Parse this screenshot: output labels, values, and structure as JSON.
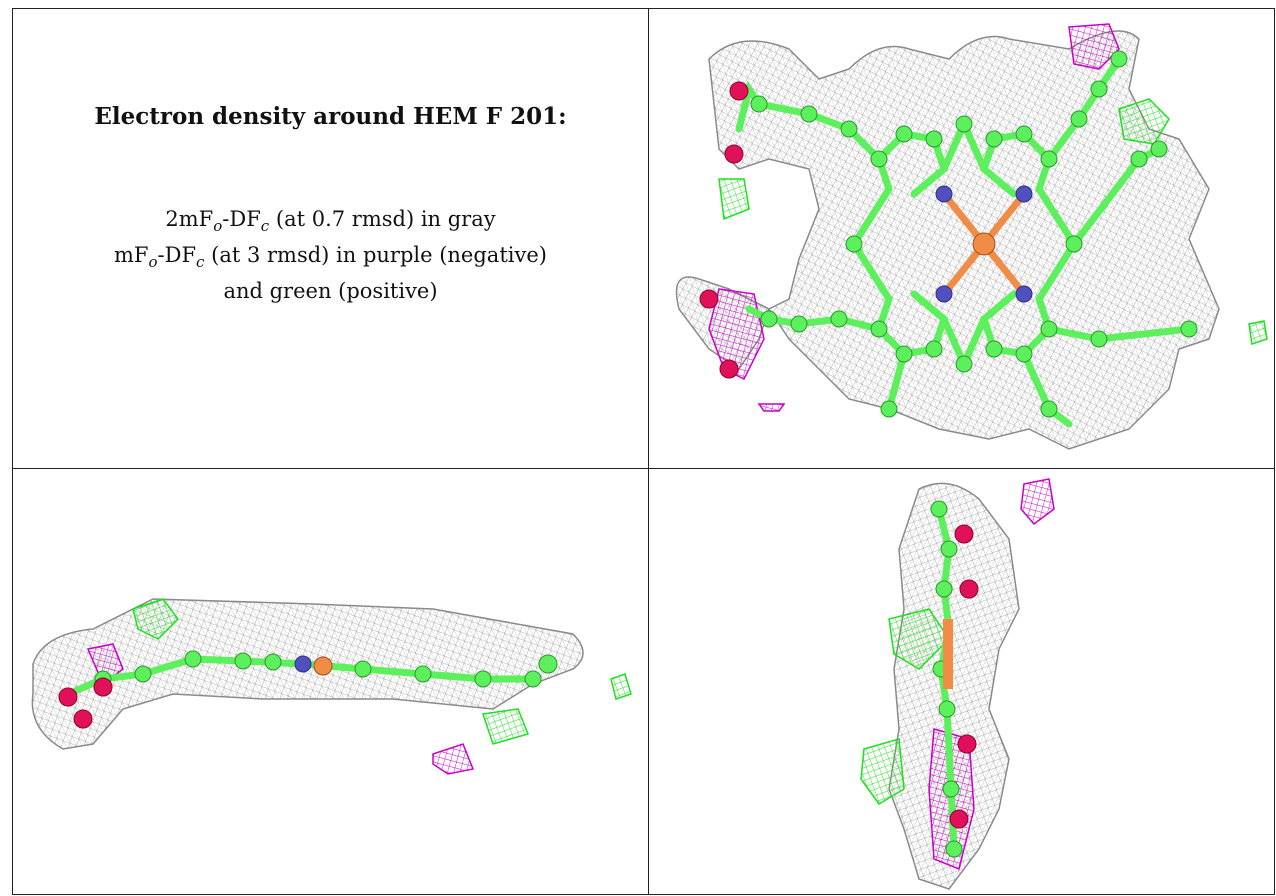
{
  "title": "Electron density around HEM F 201:",
  "caption": {
    "line1": {
      "prefix": "2mF",
      "sub1": "o",
      "mid": "-DF",
      "sub2": "c",
      "suffix": " (at 0.7 rmsd) in gray"
    },
    "line2": {
      "prefix": "mF",
      "sub1": "o",
      "mid": "-DF",
      "sub2": "c",
      "suffix": " (at 3 rmsd) in purple (negative)"
    },
    "line3": "and green (positive)"
  },
  "colors": {
    "map_2fofc": "#9a9a9a",
    "map_negative": "#c800c8",
    "map_positive": "#1ee01e",
    "carbon": "#5cf05c",
    "nitrogen": "#5050c0",
    "oxygen": "#e0105a",
    "iron": "#f08c46"
  }
}
